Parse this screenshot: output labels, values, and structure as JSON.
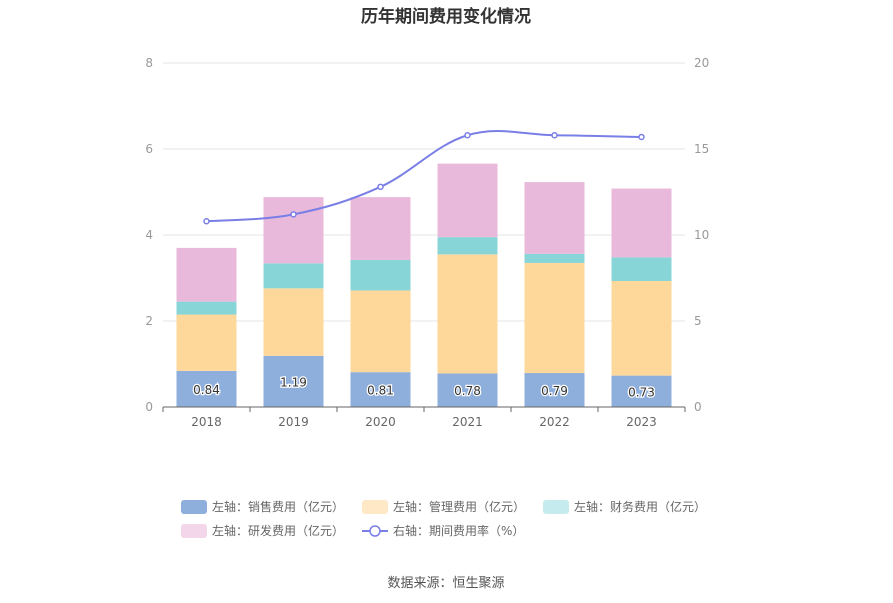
{
  "chart_data": {
    "type": "bar",
    "stacked": true,
    "title": "历年期间费用变化情况",
    "categories": [
      "2018",
      "2019",
      "2020",
      "2021",
      "2022",
      "2023"
    ],
    "y_left": {
      "min": 0,
      "max": 8,
      "ticks": [
        "0",
        "2",
        "4",
        "6",
        "8"
      ]
    },
    "y_right": {
      "min": 0,
      "max": 20,
      "ticks": [
        "0",
        "5",
        "10",
        "15",
        "20"
      ]
    },
    "series": [
      {
        "name": "左轴：销售费用（亿元）",
        "axis": "left",
        "kind": "bar",
        "color": "#8eaedc",
        "values": [
          0.84,
          1.19,
          0.81,
          0.78,
          0.79,
          0.73
        ],
        "labels": [
          "0.84",
          "1.19",
          "0.81",
          "0.78",
          "0.79",
          "0.73"
        ]
      },
      {
        "name": "左轴：管理费用（亿元）",
        "axis": "left",
        "kind": "bar",
        "color": "#fed89b",
        "values": [
          1.31,
          1.57,
          1.9,
          2.77,
          2.56,
          2.2
        ]
      },
      {
        "name": "左轴：财务费用（亿元）",
        "axis": "left",
        "kind": "bar",
        "color": "#88d5d8",
        "values": [
          0.3,
          0.58,
          0.71,
          0.4,
          0.21,
          0.55
        ]
      },
      {
        "name": "左轴：研发费用（亿元）",
        "axis": "left",
        "kind": "bar",
        "color": "#e8b9db",
        "values": [
          1.25,
          1.54,
          1.46,
          1.71,
          1.67,
          1.6
        ]
      },
      {
        "name": "右轴：期间费用率（%）",
        "axis": "right",
        "kind": "line",
        "color": "#7a7fe6",
        "values": [
          10.8,
          11.2,
          12.8,
          15.8,
          15.8,
          15.7
        ]
      }
    ],
    "legend": {
      "position": "bottom",
      "marker_colors": [
        "#8eaedc",
        "#fee8c6",
        "#c5ebee",
        "#f3d6ea",
        "#7a7fe6"
      ]
    },
    "grid": true,
    "source": "数据来源：恒生聚源"
  }
}
